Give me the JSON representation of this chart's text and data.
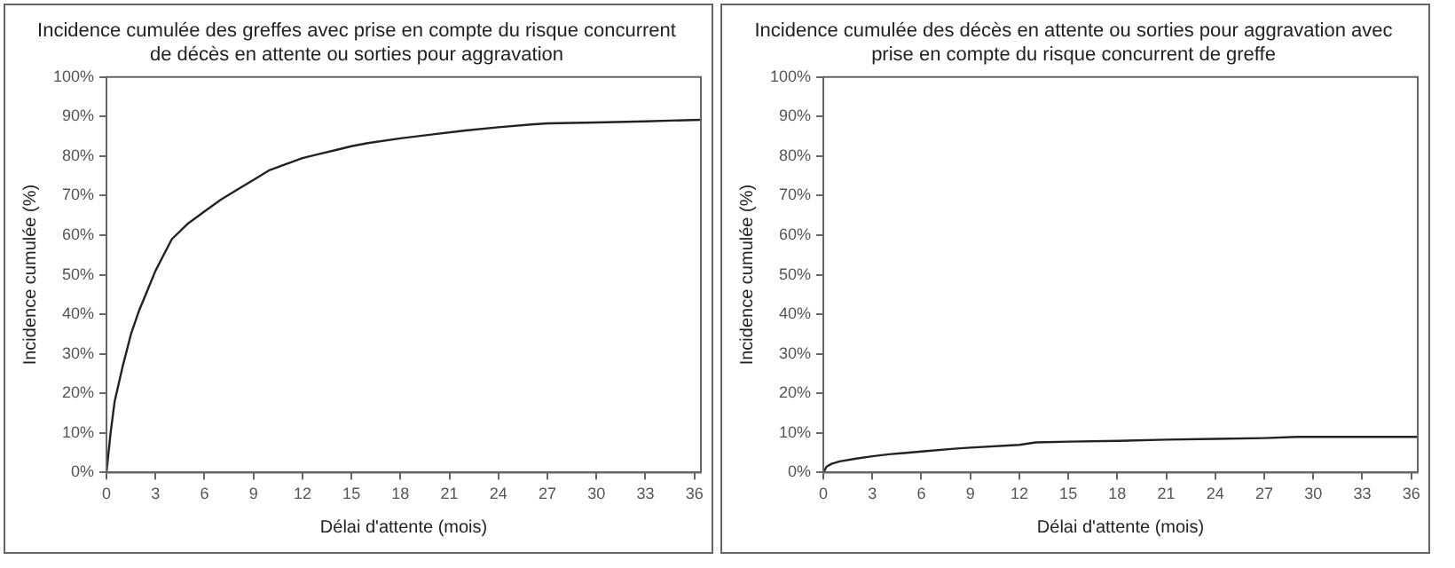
{
  "chart_data": [
    {
      "type": "line",
      "title": "Incidence cumulée des greffes avec prise en compte du risque concurrent de décès en attente ou sorties pour aggravation",
      "xlabel": "Délai d'attente (mois)",
      "ylabel": "Incidence cumulée (%)",
      "xlim": [
        0,
        36.4
      ],
      "xticks": [
        0,
        3,
        6,
        9,
        12,
        15,
        18,
        21,
        24,
        27,
        30,
        33,
        36
      ],
      "ylim": [
        0,
        100
      ],
      "yticks": [
        {
          "value": 0,
          "label": "0%"
        },
        {
          "value": 10,
          "label": "10%"
        },
        {
          "value": 20,
          "label": "20%"
        },
        {
          "value": 30,
          "label": "30%"
        },
        {
          "value": 40,
          "label": "40%"
        },
        {
          "value": 50,
          "label": "50%"
        },
        {
          "value": 60,
          "label": "60%"
        },
        {
          "value": 70,
          "label": "70%"
        },
        {
          "value": 80,
          "label": "80%"
        },
        {
          "value": 90,
          "label": "90%"
        },
        {
          "value": 100,
          "label": "100%"
        }
      ],
      "grid": false,
      "legend": false,
      "series": [
        {
          "color": "#222222",
          "x": [
            0,
            0.25,
            0.5,
            1,
            1.5,
            2,
            2.5,
            3,
            3.5,
            4,
            5,
            6,
            7,
            8,
            9,
            10,
            11,
            12,
            13,
            14,
            15,
            16,
            18,
            20,
            22,
            24,
            26,
            27,
            30,
            33,
            36.4
          ],
          "values": [
            0,
            10,
            18,
            27,
            35,
            41,
            46,
            51,
            55,
            59,
            63,
            66,
            69,
            71.5,
            74,
            76.5,
            78,
            79.5,
            80.5,
            81.5,
            82.5,
            83.3,
            84.5,
            85.5,
            86.5,
            87.3,
            88,
            88.3,
            88.5,
            88.8,
            89.2
          ]
        }
      ]
    },
    {
      "type": "line",
      "title": "Incidence cumulée des décès en attente ou sorties pour aggravation avec prise en compte du risque concurrent de greffe",
      "xlabel": "Délai d'attente (mois)",
      "ylabel": "Incidence cumulée (%)",
      "xlim": [
        0,
        36.4
      ],
      "xticks": [
        0,
        3,
        6,
        9,
        12,
        15,
        18,
        21,
        24,
        27,
        30,
        33,
        36
      ],
      "ylim": [
        0,
        100
      ],
      "yticks": [
        {
          "value": 0,
          "label": "0%"
        },
        {
          "value": 10,
          "label": "10%"
        },
        {
          "value": 20,
          "label": "20%"
        },
        {
          "value": 30,
          "label": "30%"
        },
        {
          "value": 40,
          "label": "40%"
        },
        {
          "value": 50,
          "label": "50%"
        },
        {
          "value": 60,
          "label": "60%"
        },
        {
          "value": 70,
          "label": "70%"
        },
        {
          "value": 80,
          "label": "80%"
        },
        {
          "value": 90,
          "label": "90%"
        },
        {
          "value": 100,
          "label": "100%"
        }
      ],
      "grid": false,
      "legend": false,
      "series": [
        {
          "color": "#222222",
          "x": [
            0,
            0.2,
            0.5,
            1,
            2,
            3,
            4,
            6,
            8,
            9,
            12,
            13,
            15,
            18,
            21,
            24,
            27,
            29,
            36.4
          ],
          "values": [
            0,
            1.5,
            2.2,
            2.8,
            3.5,
            4.1,
            4.6,
            5.3,
            6,
            6.3,
            7,
            7.6,
            7.8,
            8,
            8.3,
            8.5,
            8.7,
            9,
            9
          ]
        }
      ]
    }
  ]
}
